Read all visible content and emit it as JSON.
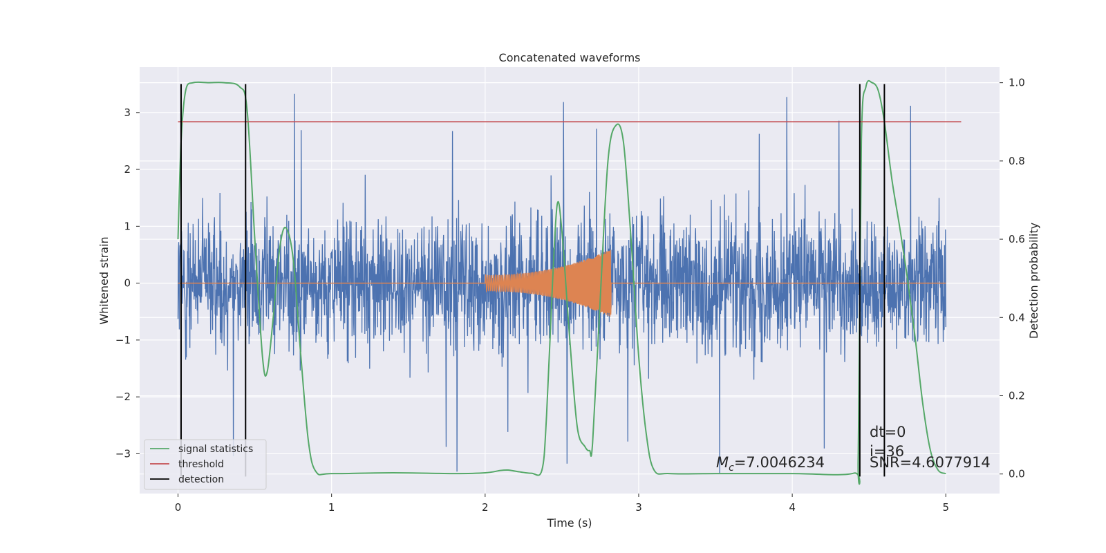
{
  "chart_data": {
    "type": "line",
    "title": "Concatenated waveforms",
    "xlabel": "Time (s)",
    "ylabel": "Whitened strain",
    "ylabel_right": "Detection probability",
    "xlim": [
      -0.25,
      5.35
    ],
    "ylim": [
      -3.7,
      3.8
    ],
    "ylim_right": [
      -0.05,
      1.04
    ],
    "x_ticks": [
      0,
      1,
      2,
      3,
      4,
      5
    ],
    "y_ticks": [
      -3,
      -2,
      -1,
      0,
      1,
      2,
      3
    ],
    "y_ticks_right": [
      0.0,
      0.2,
      0.4,
      0.6,
      0.8,
      1.0
    ],
    "x_tick_labels": [
      "0",
      "1",
      "2",
      "3",
      "4",
      "5"
    ],
    "y_tick_labels": [
      "−3",
      "−2",
      "−1",
      "0",
      "1",
      "2",
      "3"
    ],
    "y_tick_labels_right": [
      "0.0",
      "0.2",
      "0.4",
      "0.6",
      "0.8",
      "1.0"
    ],
    "grid": true,
    "legend_position": "lower-left",
    "series": [
      {
        "name": "strain",
        "color": "#4c72b0",
        "kind": "noise",
        "x_range": [
          0,
          5
        ],
        "amplitude_typical": 1.1,
        "max": 3.5,
        "min": -3.4
      },
      {
        "name": "injected waveform",
        "color": "#dd8452",
        "kind": "chirp",
        "x_range": [
          0,
          5
        ],
        "chirp_start": 2.0,
        "chirp_end": 2.82,
        "amplitude_start": 0.14,
        "amplitude_end": 0.6
      },
      {
        "name": "signal statistics",
        "color": "#55a868",
        "axis": "right",
        "x": [
          0.0,
          0.02,
          0.05,
          0.1,
          0.2,
          0.3,
          0.4,
          0.45,
          0.5,
          0.55,
          0.58,
          0.62,
          0.66,
          0.7,
          0.75,
          0.8,
          0.85,
          0.9,
          1.0,
          1.4,
          1.8,
          2.0,
          2.1,
          2.15,
          2.2,
          2.3,
          2.37,
          2.4,
          2.44,
          2.47,
          2.5,
          2.55,
          2.6,
          2.65,
          2.68,
          2.7,
          2.75,
          2.8,
          2.85,
          2.9,
          2.95,
          3.0,
          3.05,
          3.1,
          3.2,
          3.5,
          4.0,
          4.4,
          4.43,
          4.45,
          4.48,
          4.52,
          4.56,
          4.6,
          4.65,
          4.7,
          4.75,
          4.8,
          4.85,
          4.9,
          4.95,
          5.0
        ],
        "y": [
          0.6,
          0.85,
          0.98,
          1.0,
          1.0,
          1.0,
          0.99,
          0.93,
          0.6,
          0.3,
          0.26,
          0.4,
          0.57,
          0.63,
          0.55,
          0.3,
          0.08,
          0.005,
          0.001,
          0.003,
          0.001,
          0.003,
          0.009,
          0.01,
          0.007,
          0.002,
          0.01,
          0.15,
          0.5,
          0.69,
          0.62,
          0.35,
          0.12,
          0.07,
          0.06,
          0.08,
          0.45,
          0.8,
          0.89,
          0.85,
          0.6,
          0.3,
          0.1,
          0.01,
          0.001,
          0.001,
          0.001,
          0.002,
          0.05,
          0.85,
          0.99,
          1.0,
          0.98,
          0.9,
          0.75,
          0.63,
          0.5,
          0.35,
          0.18,
          0.06,
          0.01,
          0.001
        ]
      },
      {
        "name": "threshold",
        "color": "#c44e52",
        "axis": "right",
        "x": [
          0,
          5.1
        ],
        "y": [
          0.9,
          0.9
        ]
      },
      {
        "name": "detection",
        "color": "#000000",
        "kind": "vlines",
        "x": [
          0.02,
          0.44,
          4.44,
          4.6
        ],
        "y_range": [
          -3.4,
          3.5
        ]
      }
    ],
    "legend": [
      {
        "label": "signal statistics",
        "color": "#55a868"
      },
      {
        "label": "threshold",
        "color": "#c44e52"
      },
      {
        "label": "detection",
        "color": "#000000"
      }
    ],
    "annotations": {
      "mc_symbol": "M",
      "mc_subscript": "c",
      "mc_value": "=7.0046234",
      "dt": "dt=0",
      "i": "i=36",
      "snr": "SNR=4.6077914"
    },
    "colors": {
      "plot_background": "#eaeaf2",
      "grid": "#ffffff",
      "text": "#262626"
    }
  }
}
